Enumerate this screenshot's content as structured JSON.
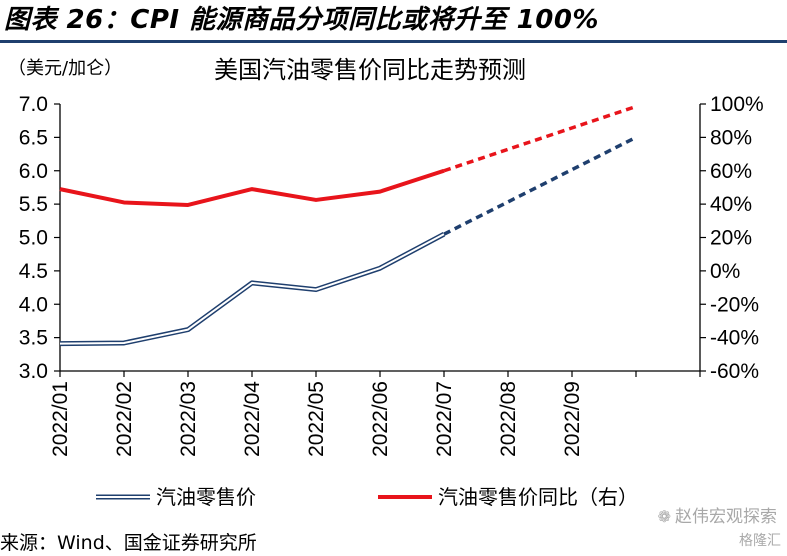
{
  "figure": {
    "title": "图表 26：CPI 能源商品分项同比或将升至 100%",
    "source": "来源：Wind、国金证券研究所",
    "watermark": "赵伟宏观探索",
    "watermark_brand": "格隆汇"
  },
  "chart_data": {
    "type": "line",
    "title": "美国汽油零售价同比走势预测",
    "left_axis_unit": "（美元/加仑）",
    "categories": [
      "2022/01",
      "2022/02",
      "2022/03",
      "2022/04",
      "2022/05",
      "2022/06",
      "2022/07",
      "2022/08",
      "2022/09"
    ],
    "left_axis": {
      "min": 3.0,
      "max": 7.0,
      "ticks": [
        "3.0",
        "3.5",
        "4.0",
        "4.5",
        "5.0",
        "5.5",
        "6.0",
        "6.5",
        "7.0"
      ]
    },
    "right_axis": {
      "min": -60,
      "max": 100,
      "ticks": [
        "-60%",
        "-40%",
        "-20%",
        "0%",
        "20%",
        "40%",
        "60%",
        "80%",
        "100%"
      ]
    },
    "grid": false,
    "legend_position": "bottom",
    "series": [
      {
        "name": "汽油零售价",
        "axis": "left",
        "color": "#1f3f6e",
        "style": "double-line",
        "x": [
          "2022/01",
          "2022/02",
          "2022/03",
          "2022/04",
          "2022/05",
          "2022/06",
          "2022/07"
        ],
        "values": [
          3.41,
          3.42,
          3.62,
          4.32,
          4.22,
          4.54,
          5.05
        ],
        "forecast": {
          "x": [
            "2022/07",
            "2022/10"
          ],
          "values": [
            5.05,
            6.5
          ],
          "style": "dashed"
        }
      },
      {
        "name": "汽油零售价同比（右）",
        "axis": "right",
        "color": "#e8141b",
        "style": "solid",
        "x": [
          "2022/01",
          "2022/02",
          "2022/03",
          "2022/04",
          "2022/05",
          "2022/06",
          "2022/07"
        ],
        "values": [
          49,
          41,
          39.5,
          49,
          42.5,
          47.5,
          60
        ],
        "forecast": {
          "x": [
            "2022/07",
            "2022/10"
          ],
          "values": [
            60,
            98.5
          ],
          "style": "dashed"
        }
      }
    ]
  }
}
